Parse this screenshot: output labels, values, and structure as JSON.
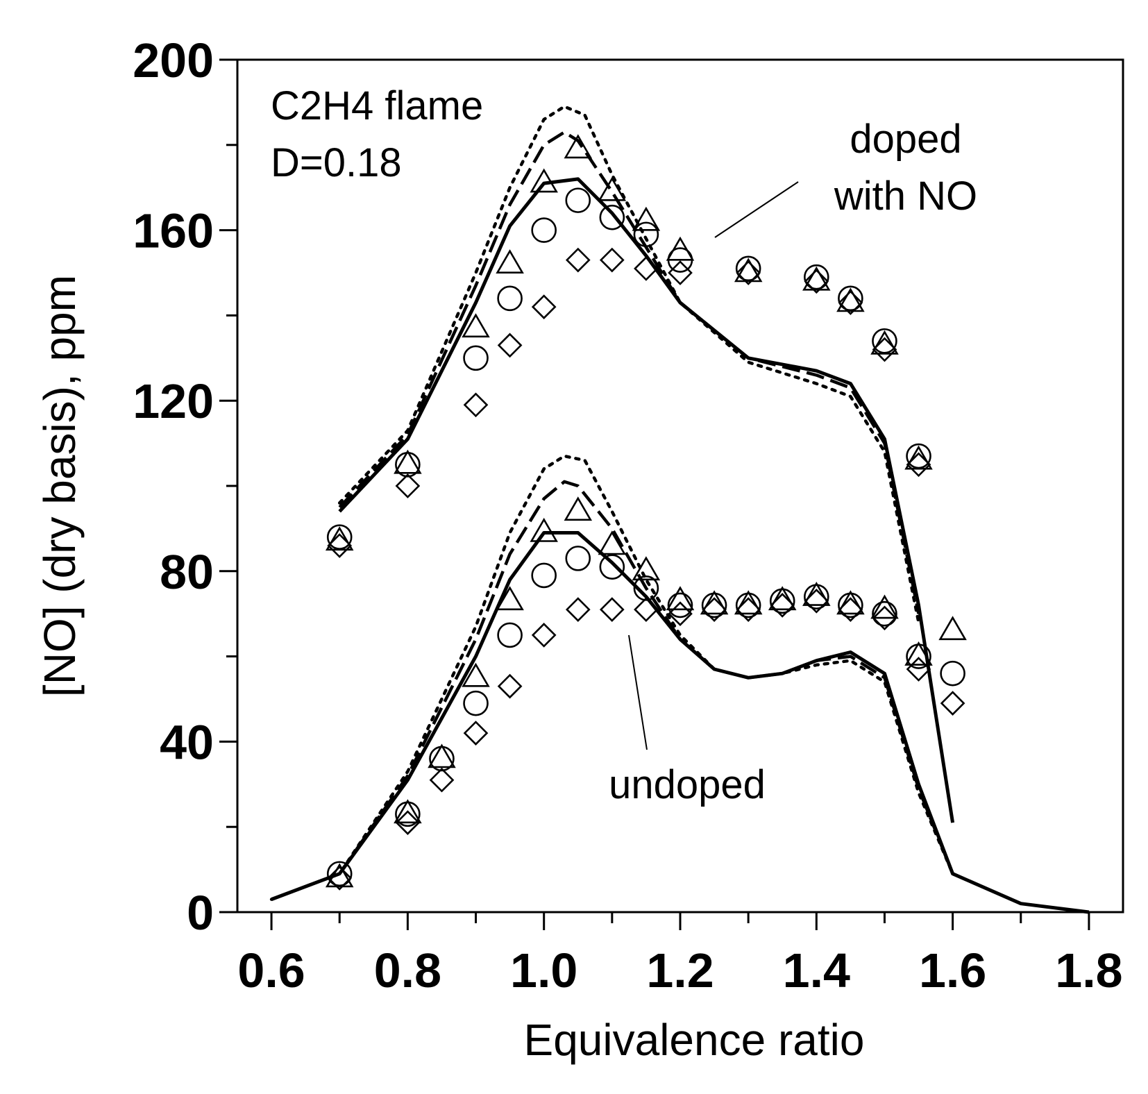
{
  "chart_data": {
    "type": "line",
    "title": "",
    "xlabel": "Equivalence ratio",
    "ylabel": "[NO] (dry basis), ppm",
    "xlim": [
      0.55,
      1.85
    ],
    "ylim": [
      0,
      200
    ],
    "x_ticks": [
      0.6,
      0.8,
      1.0,
      1.2,
      1.4,
      1.6,
      1.8
    ],
    "x_tick_labels": [
      "0.6",
      "0.8",
      "1.0",
      "1.2",
      "1.4",
      "1.6",
      "1.8"
    ],
    "y_ticks": [
      0,
      40,
      80,
      120,
      160,
      200
    ],
    "y_tick_labels": [
      "0",
      "40",
      "80",
      "120",
      "160",
      "200"
    ],
    "x_minor_ticks": [
      0.7,
      0.9,
      1.1,
      1.3,
      1.5,
      1.7
    ],
    "y_minor_ticks": [
      20,
      60,
      100,
      140,
      180
    ],
    "grid": false,
    "annotations": [
      {
        "lines": [
          "C2H4 flame",
          "D=0.18"
        ]
      },
      {
        "lines": [
          "doped",
          "with NO"
        ]
      },
      {
        "lines": [
          "undoped"
        ]
      }
    ],
    "series": [
      {
        "name": "doped model solid",
        "group": "doped",
        "style": "solid",
        "x": [
          0.7,
          0.8,
          0.9,
          0.95,
          1.0,
          1.05,
          1.1,
          1.15,
          1.2,
          1.3,
          1.4,
          1.45,
          1.5,
          1.55,
          1.6
        ],
        "y": [
          94,
          111,
          143,
          161,
          171,
          172,
          164,
          154,
          143,
          130,
          127,
          124,
          111,
          72,
          21
        ]
      },
      {
        "name": "doped model dashed",
        "group": "doped",
        "style": "dashed",
        "x": [
          0.7,
          0.8,
          0.9,
          0.95,
          1.0,
          1.03,
          1.05,
          1.1,
          1.15,
          1.2,
          1.3,
          1.4,
          1.45,
          1.5,
          1.55
        ],
        "y": [
          95,
          112,
          147,
          166,
          180,
          183,
          181,
          169,
          156,
          143,
          130,
          126,
          123,
          110,
          70
        ]
      },
      {
        "name": "doped model dotted",
        "group": "doped",
        "style": "dotted",
        "x": [
          0.7,
          0.8,
          0.9,
          0.95,
          1.0,
          1.03,
          1.06,
          1.1,
          1.15,
          1.2,
          1.3,
          1.4,
          1.45,
          1.5,
          1.55
        ],
        "y": [
          96,
          113,
          150,
          170,
          186,
          189,
          187,
          173,
          158,
          143,
          129,
          124,
          121,
          108,
          68
        ]
      },
      {
        "name": "undoped model solid",
        "group": "undoped",
        "style": "solid",
        "x": [
          0.6,
          0.7,
          0.8,
          0.9,
          0.95,
          1.0,
          1.05,
          1.1,
          1.15,
          1.2,
          1.25,
          1.3,
          1.35,
          1.4,
          1.45,
          1.5,
          1.55,
          1.6,
          1.7,
          1.8
        ],
        "y": [
          3,
          9,
          31,
          60,
          78,
          89,
          89,
          82,
          74,
          64,
          57,
          55,
          56,
          59,
          61,
          56,
          30,
          9,
          2,
          0
        ]
      },
      {
        "name": "undoped model dashed",
        "group": "undoped",
        "style": "dashed",
        "x": [
          0.6,
          0.7,
          0.8,
          0.9,
          0.95,
          1.0,
          1.03,
          1.05,
          1.1,
          1.15,
          1.2,
          1.25,
          1.3,
          1.35,
          1.4,
          1.45,
          1.5,
          1.55,
          1.6
        ],
        "y": [
          3,
          9,
          32,
          64,
          84,
          97,
          101,
          100,
          90,
          76,
          64,
          57,
          55,
          56,
          59,
          60,
          55,
          29,
          9
        ]
      },
      {
        "name": "undoped model dotted",
        "group": "undoped",
        "style": "dotted",
        "x": [
          0.6,
          0.7,
          0.8,
          0.9,
          0.95,
          1.0,
          1.03,
          1.06,
          1.1,
          1.15,
          1.2,
          1.25,
          1.3,
          1.35,
          1.4,
          1.45,
          1.5,
          1.55,
          1.6
        ],
        "y": [
          3,
          9,
          33,
          67,
          89,
          104,
          107,
          106,
          94,
          78,
          65,
          57,
          55,
          56,
          58,
          59,
          54,
          28,
          9
        ]
      },
      {
        "name": "doped measured triangles",
        "group": "doped",
        "marker": "triangle",
        "x": [
          0.7,
          0.8,
          0.9,
          0.95,
          1.0,
          1.05,
          1.1,
          1.15,
          1.2,
          1.3,
          1.4,
          1.45,
          1.5,
          1.55
        ],
        "y": [
          87,
          105,
          137,
          152,
          171,
          179,
          169,
          162,
          155,
          150,
          148,
          143,
          133,
          106
        ]
      },
      {
        "name": "doped measured circles",
        "group": "doped",
        "marker": "circle",
        "x": [
          0.7,
          0.8,
          0.9,
          0.95,
          1.0,
          1.05,
          1.1,
          1.15,
          1.2,
          1.3,
          1.4,
          1.45,
          1.5,
          1.55
        ],
        "y": [
          88,
          105,
          130,
          144,
          160,
          167,
          163,
          159,
          153,
          151,
          149,
          144,
          134,
          107
        ]
      },
      {
        "name": "doped measured diamonds",
        "group": "doped",
        "marker": "diamond",
        "x": [
          0.7,
          0.8,
          0.9,
          0.95,
          1.0,
          1.05,
          1.1,
          1.15,
          1.2,
          1.3,
          1.4,
          1.45,
          1.5,
          1.55
        ],
        "y": [
          86,
          100,
          119,
          133,
          142,
          153,
          153,
          151,
          150,
          150,
          148,
          143,
          132,
          105
        ]
      },
      {
        "name": "undoped measured triangles",
        "group": "undoped",
        "marker": "triangle",
        "x": [
          0.7,
          0.8,
          0.85,
          0.9,
          0.95,
          1.0,
          1.05,
          1.1,
          1.15,
          1.2,
          1.25,
          1.3,
          1.35,
          1.4,
          1.45,
          1.5,
          1.55,
          1.6
        ],
        "y": [
          8,
          23,
          36,
          55,
          73,
          89,
          94,
          86,
          80,
          73,
          72,
          72,
          73,
          74,
          72,
          71,
          60,
          66
        ]
      },
      {
        "name": "undoped measured circles",
        "group": "undoped",
        "marker": "circle",
        "x": [
          0.7,
          0.8,
          0.85,
          0.9,
          0.95,
          1.0,
          1.05,
          1.1,
          1.15,
          1.2,
          1.25,
          1.3,
          1.35,
          1.4,
          1.45,
          1.5,
          1.55,
          1.6
        ],
        "y": [
          9,
          23,
          36,
          49,
          65,
          79,
          83,
          81,
          76,
          72,
          72,
          72,
          73,
          74,
          72,
          70,
          60,
          56
        ]
      },
      {
        "name": "undoped measured diamonds",
        "group": "undoped",
        "marker": "diamond",
        "x": [
          0.7,
          0.8,
          0.85,
          0.9,
          0.95,
          1.0,
          1.05,
          1.1,
          1.15,
          1.2,
          1.25,
          1.3,
          1.35,
          1.4,
          1.45,
          1.5,
          1.55,
          1.6
        ],
        "y": [
          8,
          21,
          31,
          42,
          53,
          65,
          71,
          71,
          71,
          70,
          71,
          71,
          72,
          73,
          71,
          69,
          57,
          49
        ]
      }
    ]
  }
}
